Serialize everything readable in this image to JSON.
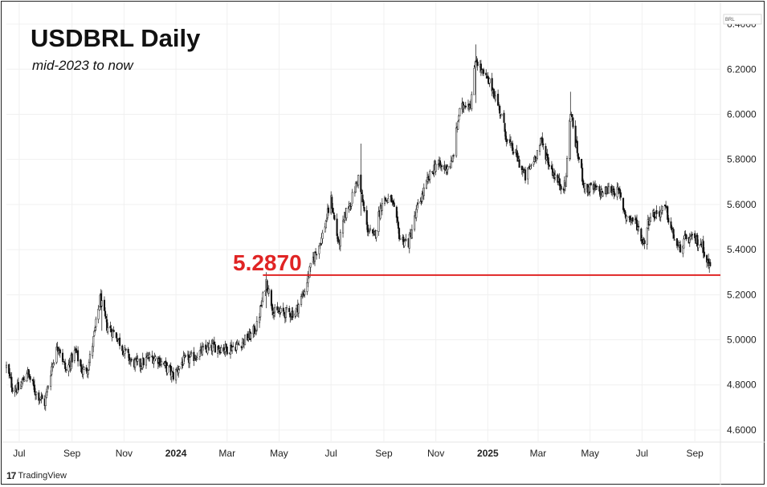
{
  "header": {
    "title": "USDBRL Daily",
    "subtitle": "mid-2023 to now"
  },
  "branding": {
    "logo_mark": "17",
    "logo_text": "TradingView"
  },
  "colors": {
    "level_line": "#e02424",
    "candle": "#111111",
    "grid": "#f0f0f0"
  },
  "chart_data": {
    "type": "candlestick",
    "currency_tag": "BRL",
    "y_ticks": [
      "6.4000",
      "6.2000",
      "6.0000",
      "5.8000",
      "5.6000",
      "5.4000",
      "5.2000",
      "5.0000",
      "4.8000",
      "4.6000"
    ],
    "ylim": [
      4.55,
      6.45
    ],
    "x_ticks": [
      {
        "label": "Jul",
        "date": "2023-07-01",
        "bold": false
      },
      {
        "label": "Sep",
        "date": "2023-09-01",
        "bold": false
      },
      {
        "label": "Nov",
        "date": "2023-11-01",
        "bold": false
      },
      {
        "label": "2024",
        "date": "2024-01-01",
        "bold": true
      },
      {
        "label": "Mar",
        "date": "2024-03-01",
        "bold": false
      },
      {
        "label": "May",
        "date": "2024-05-01",
        "bold": false
      },
      {
        "label": "Jul",
        "date": "2024-07-01",
        "bold": false
      },
      {
        "label": "Sep",
        "date": "2024-09-01",
        "bold": false
      },
      {
        "label": "Nov",
        "date": "2024-11-01",
        "bold": false
      },
      {
        "label": "2025",
        "date": "2025-01-01",
        "bold": true
      },
      {
        "label": "Mar",
        "date": "2025-03-01",
        "bold": false
      },
      {
        "label": "May",
        "date": "2025-05-01",
        "bold": false
      },
      {
        "label": "Jul",
        "date": "2025-07-01",
        "bold": false
      },
      {
        "label": "Sep",
        "date": "2025-09-01",
        "bold": false
      }
    ],
    "xlim": [
      "2023-06-16",
      "2025-10-01"
    ],
    "horizontal_level": {
      "value": 5.287,
      "label": "5.2870",
      "from": "2024-04-12"
    },
    "close_path": [
      [
        "2023-06-16",
        4.88
      ],
      [
        "2023-06-23",
        4.79
      ],
      [
        "2023-07-01",
        4.78
      ],
      [
        "2023-07-10",
        4.86
      ],
      [
        "2023-07-20",
        4.77
      ],
      [
        "2023-07-31",
        4.72
      ],
      [
        "2023-08-08",
        4.88
      ],
      [
        "2023-08-16",
        4.98
      ],
      [
        "2023-08-25",
        4.86
      ],
      [
        "2023-09-05",
        4.95
      ],
      [
        "2023-09-13",
        4.86
      ],
      [
        "2023-09-20",
        4.88
      ],
      [
        "2023-09-26",
        5.0
      ],
      [
        "2023-10-04",
        5.18
      ],
      [
        "2023-10-12",
        5.06
      ],
      [
        "2023-10-23",
        5.02
      ],
      [
        "2023-11-01",
        4.95
      ],
      [
        "2023-11-10",
        4.9
      ],
      [
        "2023-11-20",
        4.89
      ],
      [
        "2023-11-30",
        4.92
      ],
      [
        "2023-12-10",
        4.92
      ],
      [
        "2023-12-20",
        4.88
      ],
      [
        "2023-12-29",
        4.84
      ],
      [
        "2024-01-08",
        4.9
      ],
      [
        "2024-01-20",
        4.92
      ],
      [
        "2024-02-01",
        4.95
      ],
      [
        "2024-02-15",
        4.97
      ],
      [
        "2024-03-01",
        4.96
      ],
      [
        "2024-03-15",
        4.98
      ],
      [
        "2024-03-29",
        5.02
      ],
      [
        "2024-04-05",
        5.06
      ],
      [
        "2024-04-16",
        5.26
      ],
      [
        "2024-04-25",
        5.12
      ],
      [
        "2024-05-10",
        5.12
      ],
      [
        "2024-05-20",
        5.12
      ],
      [
        "2024-05-31",
        5.22
      ],
      [
        "2024-06-10",
        5.36
      ],
      [
        "2024-06-20",
        5.45
      ],
      [
        "2024-07-01",
        5.62
      ],
      [
        "2024-07-10",
        5.42
      ],
      [
        "2024-07-18",
        5.56
      ],
      [
        "2024-07-25",
        5.62
      ],
      [
        "2024-08-02",
        5.72
      ],
      [
        "2024-08-12",
        5.5
      ],
      [
        "2024-08-20",
        5.45
      ],
      [
        "2024-08-30",
        5.62
      ],
      [
        "2024-09-10",
        5.62
      ],
      [
        "2024-09-20",
        5.45
      ],
      [
        "2024-09-30",
        5.43
      ],
      [
        "2024-10-10",
        5.58
      ],
      [
        "2024-10-22",
        5.7
      ],
      [
        "2024-11-01",
        5.78
      ],
      [
        "2024-11-10",
        5.76
      ],
      [
        "2024-11-20",
        5.78
      ],
      [
        "2024-11-28",
        6.0
      ],
      [
        "2024-12-05",
        6.05
      ],
      [
        "2024-12-12",
        6.05
      ],
      [
        "2024-12-18",
        6.25
      ],
      [
        "2024-12-26",
        6.18
      ],
      [
        "2025-01-06",
        6.12
      ],
      [
        "2025-01-15",
        6.02
      ],
      [
        "2025-01-24",
        5.88
      ],
      [
        "2025-02-03",
        5.82
      ],
      [
        "2025-02-14",
        5.72
      ],
      [
        "2025-02-24",
        5.8
      ],
      [
        "2025-03-05",
        5.88
      ],
      [
        "2025-03-14",
        5.78
      ],
      [
        "2025-03-24",
        5.7
      ],
      [
        "2025-04-02",
        5.68
      ],
      [
        "2025-04-08",
        6.02
      ],
      [
        "2025-04-15",
        5.85
      ],
      [
        "2025-04-25",
        5.67
      ],
      [
        "2025-05-05",
        5.67
      ],
      [
        "2025-05-15",
        5.65
      ],
      [
        "2025-05-26",
        5.67
      ],
      [
        "2025-06-04",
        5.65
      ],
      [
        "2025-06-12",
        5.55
      ],
      [
        "2025-06-24",
        5.52
      ],
      [
        "2025-07-03",
        5.43
      ],
      [
        "2025-07-10",
        5.55
      ],
      [
        "2025-07-18",
        5.56
      ],
      [
        "2025-07-29",
        5.58
      ],
      [
        "2025-08-05",
        5.48
      ],
      [
        "2025-08-13",
        5.4
      ],
      [
        "2025-08-22",
        5.45
      ],
      [
        "2025-09-02",
        5.44
      ],
      [
        "2025-09-10",
        5.42
      ],
      [
        "2025-09-17",
        5.33
      ],
      [
        "2025-09-22",
        5.32
      ]
    ],
    "spikes": [
      {
        "date": "2023-10-06",
        "high": 5.22,
        "low": 5.04
      },
      {
        "date": "2024-04-16",
        "high": 5.3,
        "low": 5.14
      },
      {
        "date": "2024-08-05",
        "high": 5.87,
        "low": 5.55
      },
      {
        "date": "2024-12-18",
        "high": 6.31,
        "low": 6.05
      },
      {
        "date": "2025-04-08",
        "high": 6.1,
        "low": 5.8
      }
    ]
  }
}
